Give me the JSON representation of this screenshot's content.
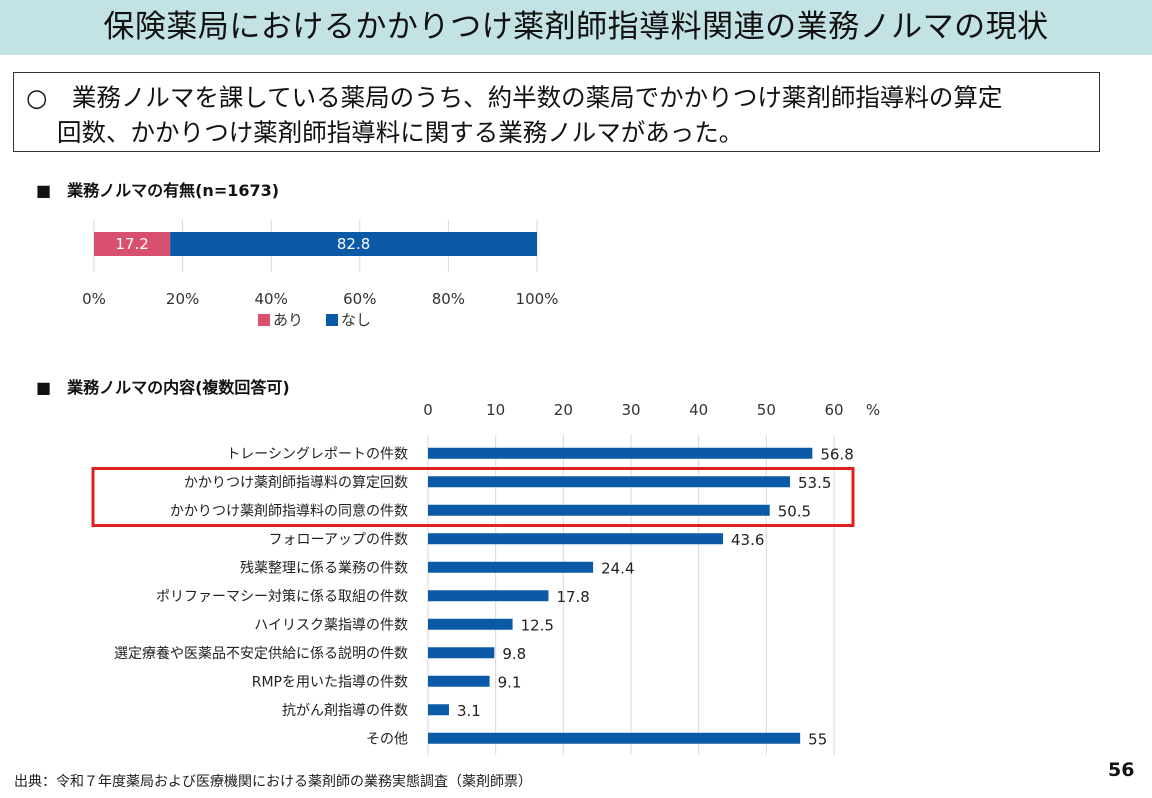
{
  "slide": {
    "title": "保険薬局におけるかかりつけ薬剤師指導料関連の業務ノルマの現状",
    "summary_line1": "○　業務ノルマを課している薬局のうち、約半数の薬局でかかりつけ薬剤師指導料の算定",
    "summary_line2": "回数、かかりつけ薬剤師指導料に関する業務ノルマがあった。",
    "section1_heading": "■　業務ノルマの有無(n=1673)",
    "section2_heading": "■　業務ノルマの内容(複数回答可)",
    "source": "出典：令和７年度薬局および医療機関における薬剤師の業務実態調査（薬剤師票）",
    "page_number": "56"
  },
  "chart_data": [
    {
      "type": "bar",
      "orientation": "horizontal",
      "stacked": true,
      "series": [
        {
          "name": "あり",
          "values": [
            17.2
          ],
          "color": "#d9506e"
        },
        {
          "name": "なし",
          "values": [
            82.8
          ],
          "color": "#0a5aa8"
        }
      ],
      "xlim": [
        0,
        100
      ],
      "x_ticks": [
        "0%",
        "20%",
        "40%",
        "60%",
        "80%",
        "100%"
      ],
      "grid": true,
      "legend": "bottom"
    },
    {
      "type": "bar",
      "orientation": "horizontal",
      "unit": "%",
      "categories": [
        "トレーシングレポートの件数",
        "かかりつけ薬剤師指導料の算定回数",
        "かかりつけ薬剤師指導料の同意の件数",
        "フォローアップの件数",
        "残薬整理に係る業務の件数",
        "ポリファーマシー対策に係る取組の件数",
        "ハイリスク薬指導の件数",
        "選定療養や医薬品不安定供給に係る説明の件数",
        "RMPを用いた指導の件数",
        "抗がん剤指導の件数",
        "その他"
      ],
      "values": [
        56.8,
        53.5,
        50.5,
        43.6,
        24.4,
        17.8,
        12.5,
        9.8,
        9.1,
        3.1,
        55
      ],
      "value_labels": [
        "56.8",
        "53.5",
        "50.5",
        "43.6",
        "24.4",
        "17.8",
        "12.5",
        "9.8",
        "9.1",
        "3.1",
        "55"
      ],
      "color": "#0a5aa8",
      "xlim": [
        0,
        60
      ],
      "x_ticks": [
        "0",
        "10",
        "20",
        "30",
        "40",
        "50",
        "60"
      ],
      "x_unit_label": "%",
      "axis_position": "top",
      "grid": true,
      "highlight": {
        "categories": [
          1,
          2
        ],
        "color": "#e02020"
      }
    }
  ]
}
